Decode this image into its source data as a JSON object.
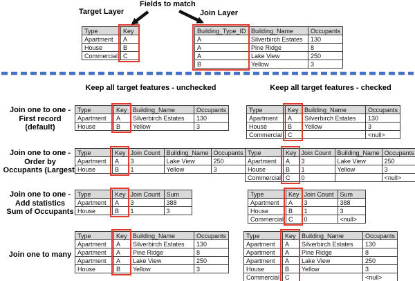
{
  "top": {
    "fields_to_match_label": "Fields to match",
    "target_layer_label": "Target Layer",
    "join_layer_label": "Join Layer"
  },
  "section_headers": {
    "unchecked": "Keep all target features - unchecked",
    "checked": "Keep all target features - checked"
  },
  "colors": {
    "highlight_red": "#e0392e",
    "divider_blue": "#4472c4",
    "table_header_gray": "#d9d9d9",
    "arrow_black": "#111111"
  },
  "tables": {
    "target": {
      "headers": [
        "Type",
        "Key"
      ],
      "highlight_column": "Key",
      "rows": [
        [
          "Apartment",
          "A"
        ],
        [
          "House",
          "B"
        ],
        [
          "Commercial",
          "C"
        ]
      ]
    },
    "join": {
      "headers": [
        "Building_Type_ID",
        "Building_Name",
        "Occupants"
      ],
      "highlight_column": "Building_Type_ID",
      "rows": [
        [
          "A",
          "Silverbirch Estates",
          "130"
        ],
        [
          "A",
          "Pine Ridge",
          "8"
        ],
        [
          "A",
          "Lake View",
          "250"
        ],
        [
          "B",
          "Yellow",
          "3"
        ]
      ]
    }
  },
  "rows": [
    {
      "label": "Join one to one -\nFirst record\n(default)",
      "unchecked": {
        "headers": [
          "Type",
          "Key",
          "Building_Name",
          "Occupants"
        ],
        "highlight_column": "Key",
        "rows": [
          [
            "Apartment",
            "A",
            "Silverbirch Estates",
            "130"
          ],
          [
            "House",
            "B",
            "Yellow",
            "3"
          ]
        ]
      },
      "checked": {
        "headers": [
          "Type",
          "Key",
          "Building_Name",
          "Occupants"
        ],
        "highlight_column": "Key",
        "rows": [
          [
            "Apartment",
            "A",
            "Silverbirch Estates",
            "130"
          ],
          [
            "House",
            "B",
            "Yellow",
            "3"
          ],
          [
            "Commercial",
            "C",
            "",
            "<null>"
          ]
        ]
      }
    },
    {
      "label": "Join one to one -\nOrder by\nOccupants (Largest)",
      "unchecked": {
        "headers": [
          "Type",
          "Key",
          "Join Count",
          "Building_Name",
          "Occupants"
        ],
        "highlight_column": "Key",
        "rows": [
          [
            "Apartment",
            "A",
            "3",
            "Lake View",
            "250"
          ],
          [
            "House",
            "B",
            "1",
            "Yellow",
            "3"
          ]
        ]
      },
      "checked": {
        "headers": [
          "Type",
          "Key",
          "Join Count",
          "Building_Name",
          "Occupants"
        ],
        "highlight_column": "Key",
        "rows": [
          [
            "Apartment",
            "A",
            "3",
            "Lake View",
            "250"
          ],
          [
            "House",
            "B",
            "1",
            "Yellow",
            "3"
          ],
          [
            "Commercial",
            "C",
            "0",
            "",
            "<null>"
          ]
        ]
      }
    },
    {
      "label": "Join one to one -\nAdd statistics\nSum of Occupants",
      "unchecked": {
        "headers": [
          "Type",
          "Key",
          "Join Count",
          "Sum"
        ],
        "highlight_column": "Key",
        "rows": [
          [
            "Apartment",
            "A",
            "3",
            "388"
          ],
          [
            "House",
            "B",
            "1",
            "3"
          ]
        ]
      },
      "checked": {
        "headers": [
          "Type",
          "Key",
          "Join Count",
          "Sum"
        ],
        "highlight_column": "Key",
        "rows": [
          [
            "Apartment",
            "A",
            "3",
            "388"
          ],
          [
            "House",
            "B",
            "1",
            "3"
          ],
          [
            "Commercial",
            "C",
            "0",
            "<null>"
          ]
        ]
      }
    },
    {
      "label": "Join one to many",
      "unchecked": {
        "headers": [
          "Type",
          "Key",
          "Building_Name",
          "Occupants"
        ],
        "highlight_column": "Key",
        "rows": [
          [
            "Apartment",
            "A",
            "Silverbirch Estates",
            "130"
          ],
          [
            "Apartment",
            "A",
            "Pine Ridge",
            "8"
          ],
          [
            "Apartment",
            "A",
            "Lake View",
            "250"
          ],
          [
            "House",
            "B",
            "Yellow",
            "3"
          ]
        ]
      },
      "checked": {
        "headers": [
          "Type",
          "Key",
          "Building_Name",
          "Occupants"
        ],
        "highlight_column": "Key",
        "rows": [
          [
            "Apartment",
            "A",
            "Silverbirch Estates",
            "130"
          ],
          [
            "Apartment",
            "A",
            "Pine Ridge",
            "8"
          ],
          [
            "Apartment",
            "A",
            "Lake View",
            "250"
          ],
          [
            "House",
            "B",
            "Yellow",
            "3"
          ],
          [
            "Commercial",
            "C",
            "",
            "<null>"
          ]
        ]
      }
    }
  ]
}
